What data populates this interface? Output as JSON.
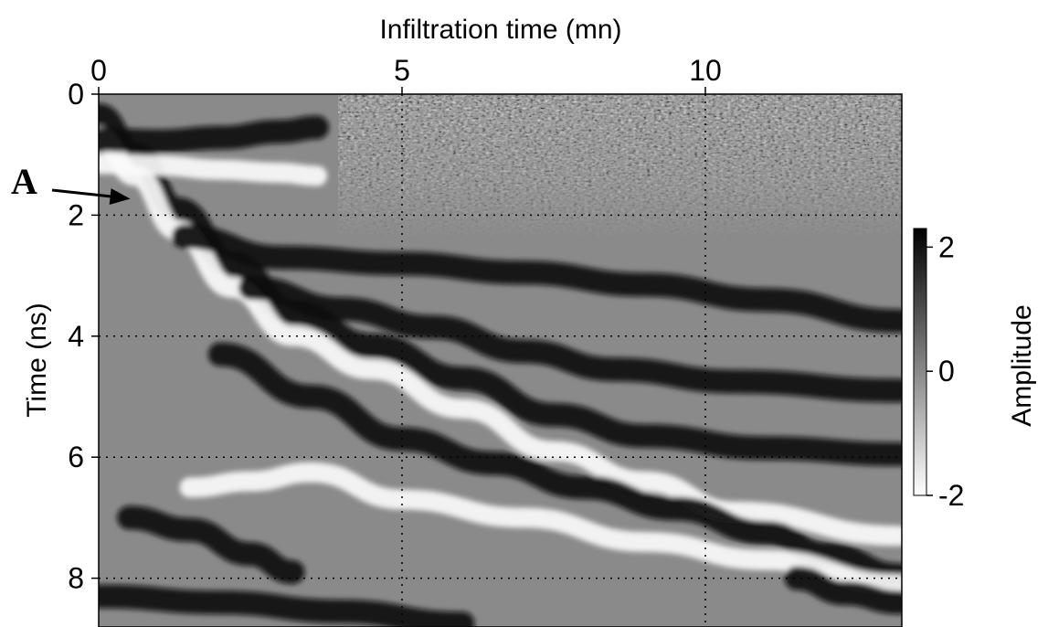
{
  "chart_data": {
    "type": "heatmap",
    "title": "",
    "xlabel": "Infiltration time (mn)",
    "ylabel": "Time (ns)",
    "xlim": [
      0,
      13.2
    ],
    "ylim": [
      0,
      8.8
    ],
    "y_inverted": true,
    "x_ticks": [
      0,
      5,
      10
    ],
    "y_ticks": [
      0,
      2,
      4,
      6,
      8
    ],
    "x_axis_position": "top",
    "grid": true,
    "grid_style": "dotted",
    "colormap": "grayscale",
    "colorbar": {
      "label": "Amplitude",
      "range": [
        -2,
        2.3
      ],
      "ticks": [
        2,
        0,
        -2
      ],
      "low_color": "#ffffff",
      "high_color": "#000000"
    },
    "features": [
      {
        "name": "dark",
        "points": [
          [
            0,
            0.35
          ],
          [
            0.6,
            1.0
          ],
          [
            1.3,
            1.9
          ],
          [
            2.2,
            2.8
          ],
          [
            3.2,
            3.6
          ],
          [
            4.5,
            4.15
          ],
          [
            6.0,
            4.7
          ],
          [
            7.5,
            5.3
          ],
          [
            9.0,
            5.65
          ],
          [
            11.0,
            5.85
          ],
          [
            13.2,
            5.95
          ]
        ]
      },
      {
        "name": "light",
        "points": [
          [
            0,
            0.7
          ],
          [
            0.6,
            1.35
          ],
          [
            1.3,
            2.25
          ],
          [
            2.2,
            3.2
          ],
          [
            3.2,
            4.0
          ],
          [
            4.5,
            4.55
          ],
          [
            6.0,
            5.2
          ],
          [
            7.5,
            5.9
          ],
          [
            9.0,
            6.4
          ],
          [
            10.5,
            6.9
          ],
          [
            13.2,
            7.3
          ]
        ]
      },
      {
        "name": "dark",
        "points": [
          [
            1.4,
            2.35
          ],
          [
            3.0,
            2.7
          ],
          [
            5.0,
            2.8
          ],
          [
            7.0,
            2.95
          ],
          [
            9.0,
            3.15
          ],
          [
            11.0,
            3.4
          ],
          [
            13.2,
            3.75
          ]
        ]
      },
      {
        "name": "dark",
        "points": [
          [
            2.5,
            3.2
          ],
          [
            4.0,
            3.55
          ],
          [
            5.5,
            3.85
          ],
          [
            7.0,
            4.25
          ],
          [
            8.5,
            4.55
          ],
          [
            10.5,
            4.75
          ],
          [
            13.2,
            4.9
          ]
        ]
      },
      {
        "name": "dark",
        "points": [
          [
            2.0,
            4.3
          ],
          [
            3.5,
            5.0
          ],
          [
            5.0,
            5.7
          ],
          [
            6.5,
            6.1
          ],
          [
            8.0,
            6.5
          ],
          [
            9.5,
            6.85
          ],
          [
            11.0,
            7.25
          ],
          [
            12.0,
            7.6
          ],
          [
            13.2,
            7.95
          ]
        ]
      },
      {
        "name": "dark",
        "points": [
          [
            0,
            0.75
          ],
          [
            1.0,
            0.78
          ],
          [
            2.0,
            0.72
          ],
          [
            3.0,
            0.62
          ],
          [
            3.6,
            0.55
          ]
        ]
      },
      {
        "name": "light",
        "points": [
          [
            0,
            1.15
          ],
          [
            1.0,
            1.18
          ],
          [
            2.0,
            1.25
          ],
          [
            3.0,
            1.3
          ],
          [
            3.6,
            1.35
          ]
        ]
      },
      {
        "name": "light",
        "points": [
          [
            1.5,
            6.5
          ],
          [
            2.5,
            6.4
          ],
          [
            3.5,
            6.25
          ],
          [
            5.0,
            6.7
          ],
          [
            7.0,
            7.0
          ],
          [
            9.0,
            7.4
          ],
          [
            11.0,
            7.7
          ],
          [
            13.2,
            8.1
          ]
        ]
      },
      {
        "name": "dark",
        "points": [
          [
            0.5,
            7.0
          ],
          [
            1.5,
            7.2
          ],
          [
            2.5,
            7.6
          ],
          [
            3.2,
            7.9
          ]
        ]
      },
      {
        "name": "dark",
        "points": [
          [
            0,
            8.3
          ],
          [
            2.0,
            8.4
          ],
          [
            4.0,
            8.55
          ],
          [
            6.0,
            8.75
          ]
        ]
      },
      {
        "name": "dark",
        "points": [
          [
            11.5,
            8.0
          ],
          [
            12.3,
            8.25
          ],
          [
            13.2,
            8.4
          ]
        ]
      }
    ],
    "annotations": [
      {
        "label": "A",
        "target": [
          0.55,
          1.85
        ]
      }
    ]
  }
}
